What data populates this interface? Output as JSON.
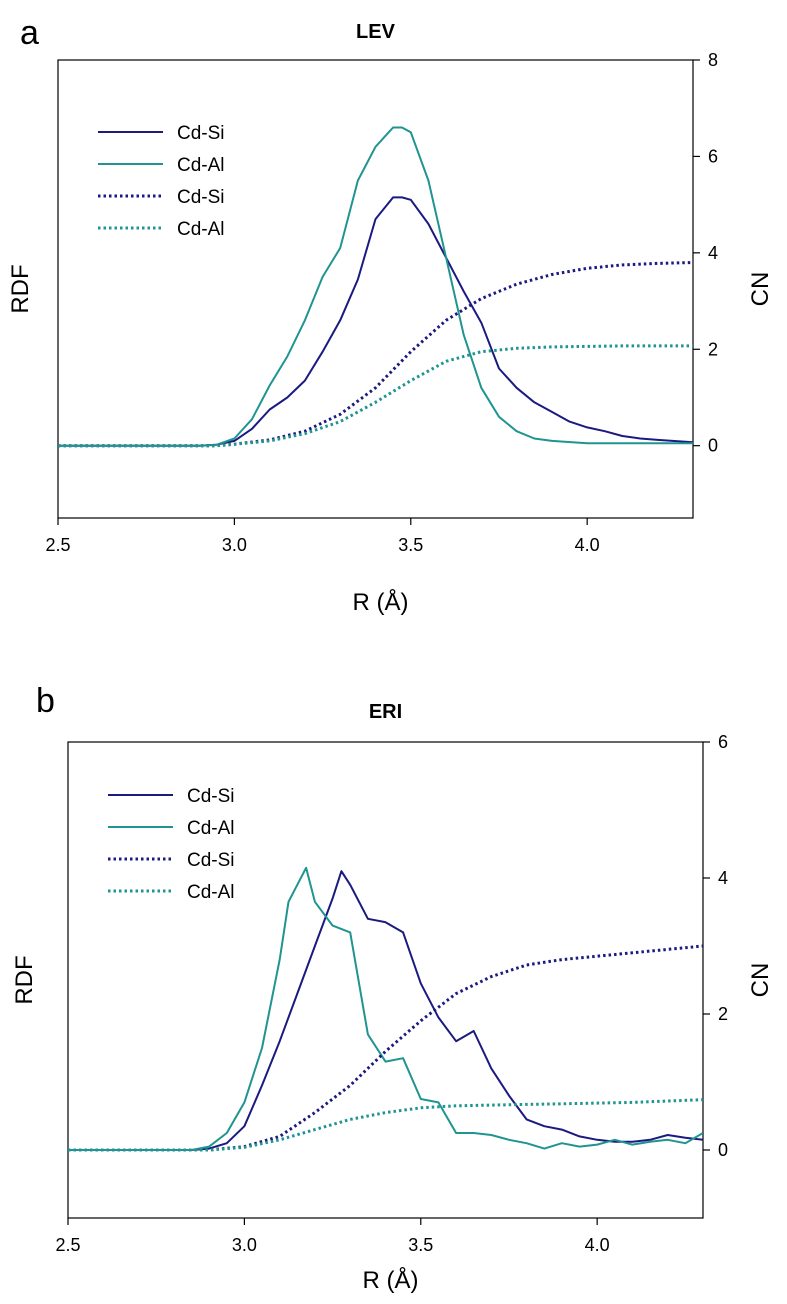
{
  "colors": {
    "si": "#1a1a80",
    "al": "#1f9490",
    "axis": "#000000"
  },
  "chart_data": [
    {
      "type": "line",
      "panel_label": "a",
      "title": "LEV",
      "xlabel": "R (Å)",
      "ylabel_left": "RDF",
      "ylabel_right": "CN",
      "xlim": [
        2.5,
        4.3
      ],
      "xticks": [
        2.5,
        3.0,
        3.5,
        4.0
      ],
      "x_tick_labels": [
        "2.5",
        "3.0",
        "3.5",
        "4.0"
      ],
      "ylim_left": [
        -1.5,
        8.0
      ],
      "ylim_right": [
        -1.5,
        8.0
      ],
      "yticks_right": [
        0,
        2,
        4,
        6,
        8
      ],
      "y_tick_labels_right": [
        "0",
        "2",
        "4",
        "6",
        "8"
      ],
      "grid": false,
      "legend_position": "top-left",
      "series": [
        {
          "name": "Cd-Si",
          "axis": "left",
          "style": "solid",
          "color": "si",
          "x": [
            2.5,
            2.9,
            2.95,
            3.0,
            3.05,
            3.1,
            3.15,
            3.2,
            3.25,
            3.3,
            3.35,
            3.4,
            3.45,
            3.475,
            3.5,
            3.55,
            3.6,
            3.65,
            3.7,
            3.75,
            3.8,
            3.85,
            3.9,
            3.95,
            4.0,
            4.05,
            4.1,
            4.15,
            4.2,
            4.3
          ],
          "y": [
            0,
            0,
            0.02,
            0.1,
            0.35,
            0.75,
            1.0,
            1.35,
            1.95,
            2.6,
            3.45,
            4.7,
            5.15,
            5.15,
            5.1,
            4.6,
            3.9,
            3.2,
            2.55,
            1.6,
            1.2,
            0.9,
            0.7,
            0.5,
            0.38,
            0.3,
            0.2,
            0.15,
            0.12,
            0.07
          ]
        },
        {
          "name": "Cd-Al",
          "axis": "left",
          "style": "solid",
          "color": "al",
          "x": [
            2.5,
            2.9,
            2.95,
            3.0,
            3.05,
            3.1,
            3.15,
            3.2,
            3.25,
            3.3,
            3.35,
            3.4,
            3.45,
            3.475,
            3.5,
            3.55,
            3.6,
            3.65,
            3.7,
            3.75,
            3.8,
            3.85,
            3.9,
            4.0,
            4.1,
            4.2,
            4.3
          ],
          "y": [
            0,
            0,
            0.02,
            0.15,
            0.55,
            1.25,
            1.85,
            2.6,
            3.5,
            4.1,
            5.5,
            6.2,
            6.6,
            6.6,
            6.5,
            5.5,
            3.9,
            2.3,
            1.2,
            0.6,
            0.3,
            0.15,
            0.1,
            0.05,
            0.05,
            0.05,
            0.05
          ]
        },
        {
          "name": "Cd-Si",
          "axis": "right",
          "style": "dotted",
          "color": "si",
          "x": [
            2.5,
            2.95,
            3.0,
            3.1,
            3.2,
            3.3,
            3.4,
            3.5,
            3.6,
            3.7,
            3.8,
            3.9,
            4.0,
            4.1,
            4.2,
            4.3
          ],
          "y": [
            0,
            0,
            0.03,
            0.12,
            0.3,
            0.65,
            1.2,
            1.95,
            2.6,
            3.05,
            3.35,
            3.55,
            3.68,
            3.75,
            3.78,
            3.8
          ]
        },
        {
          "name": "Cd-Al",
          "axis": "right",
          "style": "dotted",
          "color": "al",
          "x": [
            2.5,
            2.95,
            3.0,
            3.1,
            3.2,
            3.3,
            3.4,
            3.5,
            3.6,
            3.7,
            3.8,
            3.9,
            4.0,
            4.1,
            4.2,
            4.3
          ],
          "y": [
            0,
            0,
            0.03,
            0.1,
            0.25,
            0.5,
            0.9,
            1.35,
            1.75,
            1.95,
            2.02,
            2.05,
            2.06,
            2.07,
            2.07,
            2.07
          ]
        }
      ]
    },
    {
      "type": "line",
      "panel_label": "b",
      "title": "ERI",
      "xlabel": "R (Å)",
      "ylabel_left": "RDF",
      "ylabel_right": "CN",
      "xlim": [
        2.5,
        4.3
      ],
      "xticks": [
        2.5,
        3.0,
        3.5,
        4.0
      ],
      "x_tick_labels": [
        "2.5",
        "3.0",
        "3.5",
        "4.0"
      ],
      "ylim_left": [
        -1.0,
        6.0
      ],
      "ylim_right": [
        -1.0,
        6.0
      ],
      "yticks_right": [
        0,
        2,
        4,
        6
      ],
      "y_tick_labels_right": [
        "0",
        "2",
        "4",
        "6"
      ],
      "grid": false,
      "legend_position": "top-left",
      "series": [
        {
          "name": "Cd-Si",
          "axis": "left",
          "style": "solid",
          "color": "si",
          "x": [
            2.5,
            2.85,
            2.9,
            2.95,
            3.0,
            3.05,
            3.1,
            3.15,
            3.2,
            3.25,
            3.275,
            3.3,
            3.35,
            3.4,
            3.45,
            3.5,
            3.55,
            3.6,
            3.65,
            3.7,
            3.75,
            3.8,
            3.85,
            3.9,
            3.95,
            4.0,
            4.05,
            4.1,
            4.15,
            4.2,
            4.25,
            4.3
          ],
          "y": [
            0,
            0,
            0.02,
            0.1,
            0.35,
            0.95,
            1.6,
            2.3,
            3.0,
            3.7,
            4.1,
            3.9,
            3.4,
            3.35,
            3.2,
            2.45,
            1.95,
            1.6,
            1.75,
            1.2,
            0.8,
            0.45,
            0.35,
            0.3,
            0.2,
            0.15,
            0.12,
            0.12,
            0.15,
            0.22,
            0.18,
            0.15
          ]
        },
        {
          "name": "Cd-Al",
          "axis": "left",
          "style": "solid",
          "color": "al",
          "x": [
            2.5,
            2.85,
            2.9,
            2.95,
            3.0,
            3.05,
            3.1,
            3.125,
            3.15,
            3.175,
            3.2,
            3.25,
            3.3,
            3.35,
            3.4,
            3.45,
            3.5,
            3.55,
            3.6,
            3.65,
            3.7,
            3.75,
            3.8,
            3.85,
            3.9,
            3.95,
            4.0,
            4.05,
            4.1,
            4.15,
            4.2,
            4.25,
            4.3
          ],
          "y": [
            0,
            0,
            0.05,
            0.25,
            0.7,
            1.5,
            2.8,
            3.65,
            3.9,
            4.15,
            3.65,
            3.3,
            3.2,
            1.7,
            1.3,
            1.35,
            0.75,
            0.7,
            0.25,
            0.25,
            0.22,
            0.15,
            0.1,
            0.02,
            0.1,
            0.05,
            0.08,
            0.15,
            0.08,
            0.12,
            0.15,
            0.1,
            0.25
          ]
        },
        {
          "name": "Cd-Si",
          "axis": "right",
          "style": "dotted",
          "color": "si",
          "x": [
            2.5,
            2.9,
            3.0,
            3.1,
            3.2,
            3.3,
            3.4,
            3.5,
            3.6,
            3.7,
            3.8,
            3.9,
            4.0,
            4.1,
            4.2,
            4.3
          ],
          "y": [
            0,
            0,
            0.05,
            0.2,
            0.55,
            0.95,
            1.45,
            1.9,
            2.3,
            2.55,
            2.72,
            2.8,
            2.85,
            2.9,
            2.95,
            3.0
          ]
        },
        {
          "name": "Cd-Al",
          "axis": "right",
          "style": "dotted",
          "color": "al",
          "x": [
            2.5,
            2.9,
            3.0,
            3.1,
            3.2,
            3.3,
            3.4,
            3.5,
            3.6,
            3.7,
            3.8,
            3.9,
            4.0,
            4.1,
            4.2,
            4.3
          ],
          "y": [
            0,
            0,
            0.04,
            0.15,
            0.3,
            0.45,
            0.55,
            0.62,
            0.65,
            0.66,
            0.67,
            0.68,
            0.69,
            0.7,
            0.72,
            0.74
          ]
        }
      ]
    }
  ]
}
